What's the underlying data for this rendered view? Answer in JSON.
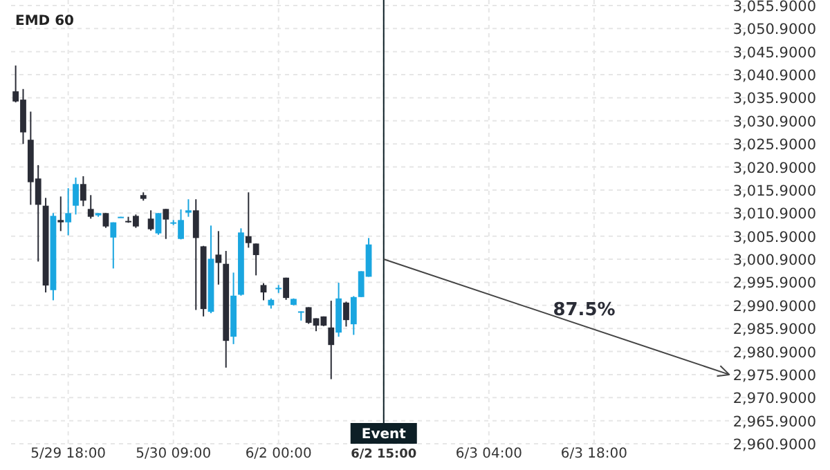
{
  "chart_data": {
    "type": "candlestick",
    "title": "EMD 60",
    "categories": [
      null,
      null,
      null,
      null,
      null,
      null,
      null,
      "5/29 18:00",
      null,
      null,
      null,
      null,
      null,
      null,
      null,
      null,
      null,
      null,
      null,
      null,
      null,
      "5/30 09:00",
      null,
      null,
      null,
      null,
      null,
      null,
      null,
      null,
      null,
      null,
      null,
      null,
      null,
      "6/2 00:00",
      null,
      null,
      null,
      null,
      null,
      null,
      null,
      null,
      null,
      null,
      null,
      null,
      null,
      "6/2 15:00",
      null,
      null,
      null,
      null,
      null,
      null,
      null,
      null,
      null,
      null,
      null,
      null,
      null,
      "6/3 04:00",
      null,
      null,
      null,
      null,
      null,
      null,
      null,
      null,
      null,
      null,
      null,
      null,
      null,
      "6/3 18:00",
      null,
      null,
      null,
      null,
      null,
      null,
      null,
      null,
      null,
      null,
      null,
      null,
      null,
      null,
      null,
      null,
      null,
      null,
      null,
      null,
      null,
      null,
      null,
      null,
      null,
      null,
      null,
      null,
      null,
      null,
      null
    ],
    "ohlc": [
      [
        3037.3,
        3042.9,
        3034.9,
        3035.1
      ],
      [
        3035.5,
        3037.8,
        3025.9,
        3028.4
      ],
      [
        3026.8,
        3032.9,
        3012.7,
        3017.6
      ],
      [
        3018.4,
        3021.3,
        3000.4,
        3012.7
      ],
      [
        3012.5,
        3014.2,
        2993.7,
        2995.2
      ],
      [
        2994.2,
        3010.9,
        2992.0,
        3010.3
      ],
      [
        3009.4,
        3014.5,
        3007.0,
        3008.9
      ],
      [
        3008.9,
        3016.3,
        3006.1,
        3010.9
      ],
      [
        3012.5,
        3018.6,
        3010.6,
        3017.2
      ],
      [
        3017.2,
        3018.9,
        3012.4,
        3013.6
      ],
      [
        3011.8,
        3014.8,
        3009.7,
        3010.1
      ],
      [
        3010.4,
        3010.9,
        3010.1,
        3010.9
      ],
      [
        3010.9,
        3010.9,
        3007.7,
        3008.0
      ],
      [
        3005.6,
        3008.9,
        2998.9,
        3008.9
      ],
      [
        3009.9,
        3010.1,
        3009.9,
        3010.1
      ],
      [
        3009.2,
        3010.1,
        3008.8,
        3008.9
      ],
      [
        3010.3,
        3010.6,
        3007.7,
        3008.0
      ],
      [
        3014.8,
        3015.4,
        3013.6,
        3014.0
      ],
      [
        3009.7,
        3011.5,
        3007.1,
        3007.4
      ],
      [
        3006.5,
        3010.9,
        3006.2,
        3010.9
      ],
      [
        3011.8,
        3011.8,
        3005.3,
        3009.5
      ],
      [
        3008.6,
        3009.4,
        3008.3,
        3008.9
      ],
      [
        3005.3,
        3011.7,
        3005.2,
        3009.4
      ],
      [
        3011.0,
        3013.9,
        3010.1,
        3011.5
      ],
      [
        3011.5,
        3013.9,
        2989.9,
        3005.5
      ],
      [
        3003.7,
        3003.8,
        2988.5,
        2990.1
      ],
      [
        2989.5,
        3008.2,
        2989.2,
        3001.0
      ],
      [
        3001.9,
        3007.0,
        2995.4,
        3000.1
      ],
      [
        2999.9,
        3002.7,
        2977.4,
        2983.2
      ],
      [
        2984.1,
        2998.0,
        2982.5,
        2993.0
      ],
      [
        2993.2,
        3007.6,
        2993.0,
        3006.7
      ],
      [
        3005.9,
        3015.4,
        3003.4,
        3004.4
      ],
      [
        3004.3,
        3004.3,
        2997.4,
        3001.8
      ],
      [
        2995.3,
        2995.7,
        2992.0,
        2993.7
      ],
      [
        2990.9,
        2992.4,
        2990.2,
        2992.1
      ],
      [
        2994.5,
        2995.3,
        2993.6,
        2994.7
      ],
      [
        2996.9,
        2996.9,
        2992.1,
        2992.5
      ],
      [
        2991.0,
        2992.4,
        2990.9,
        2992.3
      ],
      [
        2989.3,
        2989.6,
        2987.6,
        2989.6
      ],
      [
        2990.5,
        2990.5,
        2986.9,
        2987.1
      ],
      [
        2988.1,
        2988.1,
        2985.3,
        2986.5
      ],
      [
        2988.5,
        2988.5,
        2986.4,
        2986.5
      ],
      [
        2986.1,
        2991.9,
        2974.9,
        2982.3
      ],
      [
        2985.0,
        2995.8,
        2984.1,
        2992.4
      ],
      [
        2991.5,
        2991.7,
        2986.3,
        2987.7
      ],
      [
        2986.8,
        2992.9,
        2984.5,
        2992.7
      ],
      [
        2992.7,
        2998.3,
        2992.7,
        2998.3
      ],
      [
        2997.1,
        3005.5,
        2997.1,
        3004.1
      ],
      null,
      null,
      null,
      null,
      null,
      null,
      null,
      null,
      null,
      null,
      null,
      null,
      null,
      null,
      null,
      null,
      null,
      null,
      null,
      null,
      null,
      null,
      null,
      null,
      null,
      null,
      null,
      null,
      null,
      null,
      null,
      null,
      null,
      null,
      null,
      null,
      null,
      null,
      null,
      null,
      null,
      null,
      null,
      null,
      null,
      null,
      null,
      null,
      null,
      null,
      null,
      null,
      null,
      null,
      null,
      null,
      null,
      null,
      null,
      null,
      null
    ],
    "colors": [
      "#2a2c36",
      "#2a2c36",
      "#2a2c36",
      "#2a2c36",
      "#2a2c36",
      "#1aa6e0",
      "#2a2c36",
      "#1aa6e0",
      "#1aa6e0",
      "#2a2c36",
      "#2a2c36",
      "#1aa6e0",
      "#2a2c36",
      "#1aa6e0",
      "#1aa6e0",
      "#2a2c36",
      "#2a2c36",
      "#2a2c36",
      "#2a2c36",
      "#1aa6e0",
      "#2a2c36",
      "#1aa6e0",
      "#1aa6e0",
      "#1aa6e0",
      "#2a2c36",
      "#2a2c36",
      "#1aa6e0",
      "#2a2c36",
      "#2a2c36",
      "#1aa6e0",
      "#1aa6e0",
      "#2a2c36",
      "#2a2c36",
      "#2a2c36",
      "#1aa6e0",
      "#1aa6e0",
      "#2a2c36",
      "#1aa6e0",
      "#1aa6e0",
      "#2a2c36",
      "#2a2c36",
      "#2a2c36",
      "#2a2c36",
      "#1aa6e0",
      "#2a2c36",
      "#1aa6e0",
      "#1aa6e0",
      "#1aa6e0",
      null,
      null,
      null,
      null,
      null,
      null,
      null,
      null,
      null,
      null,
      null,
      null,
      null,
      null,
      null,
      null,
      null,
      null,
      null,
      null,
      null,
      null,
      null,
      null,
      null,
      null,
      null,
      null,
      null,
      null,
      null,
      null,
      null,
      null,
      null,
      null,
      null,
      null,
      null,
      null,
      null,
      null,
      null,
      null,
      null,
      null,
      null,
      null,
      null,
      null,
      null,
      null,
      null,
      null,
      null,
      null,
      null,
      null,
      null,
      null,
      null
    ],
    "ylim": [
      2960.9,
      3055.9
    ],
    "yticks": [
      {
        "value": 2960.9,
        "label": "2,960.9000"
      },
      {
        "value": 2965.9,
        "label": "2,965.9000"
      },
      {
        "value": 2970.9,
        "label": "2,970.9000"
      },
      {
        "value": 2975.9,
        "label": "2,975.9000"
      },
      {
        "value": 2980.9,
        "label": "2,980.9000"
      },
      {
        "value": 2985.9,
        "label": "2,985.9000"
      },
      {
        "value": 2990.9,
        "label": "2,990.9000"
      },
      {
        "value": 2995.9,
        "label": "2,995.9000"
      },
      {
        "value": 3000.9,
        "label": "3,000.9000"
      },
      {
        "value": 3005.9,
        "label": "3,005.9000"
      },
      {
        "value": 3010.9,
        "label": "3,010.9000"
      },
      {
        "value": 3015.9,
        "label": "3,015.9000"
      },
      {
        "value": 3020.9,
        "label": "3,020.9000"
      },
      {
        "value": 3025.9,
        "label": "3,025.9000"
      },
      {
        "value": 3030.9,
        "label": "3,030.9000"
      },
      {
        "value": 3035.9,
        "label": "3,035.9000"
      },
      {
        "value": 3040.9,
        "label": "3,040.9000"
      },
      {
        "value": 3045.9,
        "label": "3,045.9000"
      },
      {
        "value": 3050.9,
        "label": "3,050.9000"
      },
      {
        "value": 3055.9,
        "label": "3,055.9000"
      }
    ],
    "grid": true,
    "ref_lines": [
      {
        "axis": "x",
        "value": "6/2 15:00",
        "label": "Event",
        "color": "#0d1f26"
      }
    ],
    "series": [
      {
        "type": "line",
        "color": "#444444",
        "values": [
          null,
          null,
          null,
          null,
          null,
          null,
          null,
          null,
          null,
          null,
          null,
          null,
          null,
          null,
          null,
          null,
          null,
          null,
          null,
          null,
          null,
          null,
          null,
          null,
          null,
          null,
          null,
          null,
          null,
          null,
          null,
          null,
          null,
          null,
          null,
          null,
          null,
          null,
          null,
          null,
          null,
          null,
          null,
          null,
          null,
          null,
          null,
          null,
          null,
          3000.9,
          null,
          null,
          null,
          null,
          null,
          null,
          null,
          null,
          null,
          null,
          null,
          null,
          null,
          null,
          null,
          null,
          null,
          null,
          null,
          null,
          null,
          null,
          null,
          null,
          null,
          null,
          null,
          null,
          null,
          null,
          null,
          null,
          null,
          null,
          null,
          null,
          null,
          null,
          null,
          null,
          null,
          null,
          null,
          null,
          null,
          2975.9,
          null,
          null,
          null,
          null,
          null,
          null,
          null,
          null,
          null,
          null,
          null,
          null,
          null
        ]
      }
    ],
    "annotations": [
      "87.5%"
    ]
  }
}
